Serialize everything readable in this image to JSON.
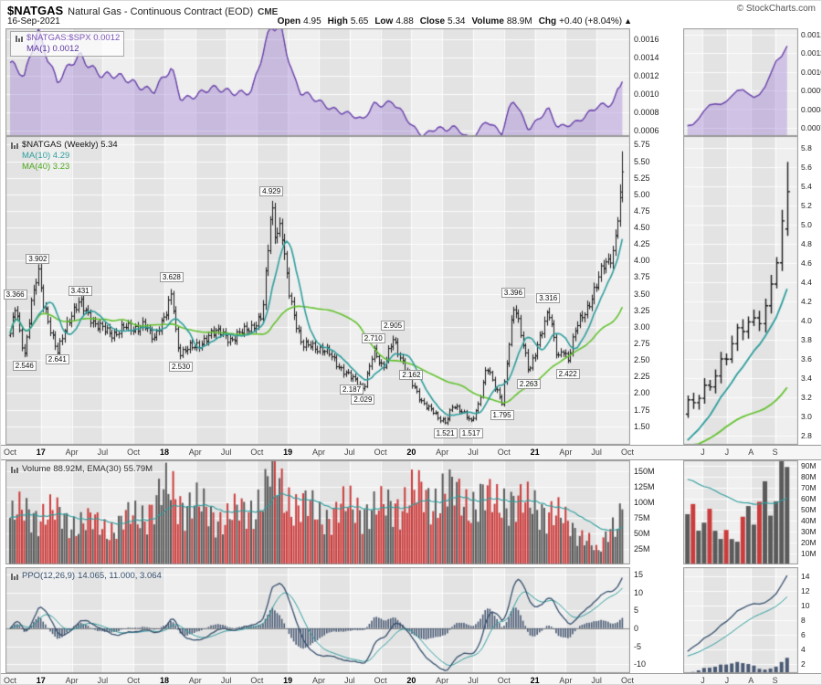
{
  "header": {
    "symbol": "$NATGAS",
    "description": "Natural Gas - Continuous Contract (EOD)",
    "exchange": "CME",
    "copyright": "© StockCharts.com",
    "date": "16-Sep-2021",
    "quote": [
      {
        "label": "Open",
        "value": "4.95"
      },
      {
        "label": "High",
        "value": "5.65"
      },
      {
        "label": "Low",
        "value": "4.88"
      },
      {
        "label": "Close",
        "value": "5.34"
      },
      {
        "label": "Volume",
        "value": "88.9M"
      },
      {
        "label": "Chg",
        "value": "+0.40 (+8.04%)"
      }
    ],
    "chg_arrow": "▲"
  },
  "colors": {
    "ratio_line": "#7d55b8",
    "ratio_ma": "#5a35a0",
    "ratio_fill": "rgba(155,120,210,0.38)",
    "price_bar": "#1a1a1a",
    "ma10": "#2f9e9e",
    "ma40": "#63c22e",
    "vol_up": "#5a5a5a",
    "vol_down": "#cc3b3b",
    "vol_ema": "#2f9e9e",
    "ppo_line": "#36506e",
    "ppo_signal": "#2f9e9e",
    "ppo_hist": "#4a5a74",
    "band_dark": "#e3e3e3",
    "band_light": "#efefef",
    "grid": "rgba(255,255,255,0.85)",
    "frame": "#999999"
  },
  "x_axis": {
    "main": {
      "labels": [
        "Oct",
        "17",
        "Apr",
        "Jul",
        "Oct",
        "18",
        "Apr",
        "Jul",
        "Oct",
        "19",
        "Apr",
        "Jul",
        "Oct",
        "20",
        "Apr",
        "Jul",
        "Oct",
        "21",
        "Apr",
        "Jul",
        "Oct"
      ],
      "months": [
        0,
        3,
        6,
        9,
        12,
        15,
        18,
        21,
        24,
        27,
        30,
        33,
        36,
        39,
        42,
        45,
        48,
        51,
        54,
        57,
        60
      ]
    },
    "thumb": {
      "labels": [
        "J",
        "J",
        "A",
        "S"
      ],
      "months": [
        56,
        57,
        58,
        59
      ]
    }
  },
  "chart_data": [
    {
      "id": "ratio",
      "type": "area",
      "title": "$NATGAS:$SPX",
      "legend": [
        {
          "text": "$NATGAS:$SPX 0.0012"
        },
        {
          "text": "MA(1) 0.0012"
        }
      ],
      "y_ticks": {
        "values": [
          0.0016,
          0.0014,
          0.0012,
          0.001,
          0.0008,
          0.0006
        ],
        "labels": [
          "0.0016",
          "0.0014",
          "0.0012",
          "0.0010",
          "0.0008",
          "0.0006"
        ]
      },
      "y_range": [
        0.000545,
        0.00172
      ],
      "thumb_y_ticks": {
        "values": [
          0.0012,
          0.0011,
          0.001,
          0.0009,
          0.0008,
          0.0007
        ],
        "labels": [
          "0.0012",
          "0.0011",
          "0.0010",
          "0.0009",
          "0.0008",
          "0.0007"
        ]
      },
      "thumb_y_range": [
        0.000655,
        0.001235
      ],
      "waypoints": {
        "months": [
          0,
          1.4,
          2.7,
          4.6,
          6.8,
          9,
          12,
          14,
          15.7,
          16.6,
          19.5,
          23.5,
          25.4,
          26.3,
          27.6,
          28.3,
          30,
          32,
          34.3,
          35.3,
          37.2,
          39,
          40,
          41.6,
          42.3,
          43,
          44.8,
          46.3,
          47.8,
          48.6,
          49,
          50.4,
          52.3,
          53.2,
          55,
          56,
          57,
          58.2,
          58.7,
          59,
          59.3,
          59.5
        ],
        "values": [
          0.00135,
          0.00117,
          0.00172,
          0.00114,
          0.00142,
          0.00122,
          0.00114,
          0.00104,
          0.00127,
          0.00096,
          0.00105,
          0.00103,
          0.00174,
          0.00177,
          0.00118,
          0.00101,
          0.00092,
          0.00083,
          0.00071,
          0.0009,
          0.00092,
          0.00066,
          0.00056,
          0.00065,
          0.0006,
          0.00064,
          0.00052,
          0.00072,
          0.00056,
          0.00087,
          0.00095,
          0.00063,
          0.00083,
          0.00064,
          0.00071,
          0.00077,
          0.00085,
          0.00089,
          0.00093,
          0.00105,
          0.00113,
          0.0012
        ]
      }
    },
    {
      "id": "price",
      "type": "ohlc",
      "title": "$NATGAS (Weekly)",
      "legend": {
        "main": "$NATGAS (Weekly) 5.34",
        "ma10": "MA(10) 4.29",
        "ma40": "MA(40) 3.23"
      },
      "last_bar": {
        "open": 4.95,
        "high": 5.65,
        "low": 4.88,
        "close": 5.34
      },
      "y_ticks": {
        "values": [
          5.75,
          5.5,
          5.25,
          5.0,
          4.75,
          4.5,
          4.25,
          4.0,
          3.75,
          3.5,
          3.25,
          3.0,
          2.75,
          2.5,
          2.25,
          2.0,
          1.75,
          1.5
        ],
        "labels": [
          "5.75",
          "5.50",
          "5.25",
          "5.00",
          "4.75",
          "4.50",
          "4.25",
          "4.00",
          "3.75",
          "3.50",
          "3.25",
          "3.00",
          "2.75",
          "2.50",
          "2.25",
          "2.00",
          "1.75",
          "1.50"
        ]
      },
      "y_range": [
        1.22,
        5.88
      ],
      "thumb_y_ticks": {
        "values": [
          5.8,
          5.6,
          5.4,
          5.2,
          5.0,
          4.8,
          4.6,
          4.4,
          4.2,
          4.0,
          3.8,
          3.6,
          3.4,
          3.2,
          3.0,
          2.8
        ],
        "labels": [
          "5.8",
          "5.6",
          "5.4",
          "5.2",
          "5.0",
          "4.8",
          "4.6",
          "4.4",
          "4.2",
          "4.0",
          "3.8",
          "3.6",
          "3.4",
          "3.2",
          "3.0",
          "2.8"
        ]
      },
      "thumb_y_range": [
        2.7,
        5.92
      ],
      "waypoints": {
        "months": [
          0,
          0.5,
          1.0,
          1.4,
          2.0,
          2.7,
          3.2,
          4.0,
          4.6,
          5.2,
          6.0,
          6.8,
          7.5,
          8.2,
          9.0,
          10,
          11,
          12,
          13,
          14,
          15,
          15.7,
          16.2,
          16.6,
          17.5,
          18.5,
          19.5,
          20.5,
          21.5,
          22.5,
          23.5,
          24.5,
          25.4,
          25.8,
          26.3,
          27.0,
          27.6,
          28.3,
          29.2,
          30,
          31,
          32,
          33.2,
          34.3,
          35.3,
          36.2,
          37.2,
          38.2,
          39,
          40,
          41,
          41.6,
          42.3,
          43,
          43.8,
          44.8,
          45.5,
          46.3,
          47,
          47.8,
          48.6,
          49,
          49.6,
          50.4,
          51.2,
          52.3,
          53.2,
          53.7,
          54.2,
          55,
          56,
          57,
          57.6,
          58.2,
          58.7,
          59,
          59.3,
          59.5
        ],
        "closes": [
          2.9,
          3.3,
          2.8,
          2.57,
          3.35,
          3.88,
          3.32,
          2.88,
          2.66,
          2.95,
          3.14,
          3.4,
          3.24,
          3.02,
          2.96,
          2.89,
          3.01,
          2.92,
          3.09,
          2.79,
          3.15,
          3.58,
          2.74,
          2.56,
          2.7,
          2.76,
          2.87,
          2.94,
          2.8,
          2.91,
          3.0,
          3.2,
          4.8,
          4.32,
          4.6,
          3.64,
          3.1,
          2.72,
          2.77,
          2.64,
          2.6,
          2.4,
          2.22,
          2.06,
          2.66,
          2.33,
          2.86,
          2.42,
          2.14,
          1.88,
          1.74,
          1.6,
          1.56,
          1.84,
          1.72,
          1.56,
          1.84,
          2.42,
          2.1,
          1.86,
          2.98,
          3.35,
          2.88,
          2.32,
          2.74,
          3.22,
          2.52,
          2.7,
          2.5,
          2.98,
          3.26,
          3.68,
          3.9,
          3.94,
          4.18,
          4.68,
          5.08,
          5.34
        ]
      },
      "annotations": [
        {
          "text": "3.366",
          "month": 0.5,
          "price": 3.366,
          "pos": "above"
        },
        {
          "text": "3.902",
          "month": 2.7,
          "price": 3.902,
          "pos": "above"
        },
        {
          "text": "2.546",
          "month": 1.4,
          "price": 2.546,
          "pos": "below"
        },
        {
          "text": "2.641",
          "month": 4.6,
          "price": 2.641,
          "pos": "below"
        },
        {
          "text": "3.431",
          "month": 6.8,
          "price": 3.431,
          "pos": "above"
        },
        {
          "text": "3.628",
          "month": 15.7,
          "price": 3.628,
          "pos": "above"
        },
        {
          "text": "2.530",
          "month": 16.6,
          "price": 2.53,
          "pos": "below"
        },
        {
          "text": "4.929",
          "month": 25.4,
          "price": 4.929,
          "pos": "above"
        },
        {
          "text": "2.710",
          "month": 35.3,
          "price": 2.71,
          "pos": "above"
        },
        {
          "text": "2.905",
          "month": 37.2,
          "price": 2.905,
          "pos": "above"
        },
        {
          "text": "2.187",
          "month": 33.2,
          "price": 2.187,
          "pos": "below"
        },
        {
          "text": "2.029",
          "month": 34.3,
          "price": 2.029,
          "pos": "below"
        },
        {
          "text": "2.162",
          "month": 39,
          "price": 2.162,
          "pos": "above"
        },
        {
          "text": "1.521",
          "month": 42.3,
          "price": 1.521,
          "pos": "below"
        },
        {
          "text": "1.517",
          "month": 44.8,
          "price": 1.517,
          "pos": "below"
        },
        {
          "text": "1.795",
          "month": 47.8,
          "price": 1.795,
          "pos": "below"
        },
        {
          "text": "3.396",
          "month": 48.9,
          "price": 3.396,
          "pos": "above"
        },
        {
          "text": "2.263",
          "month": 50.4,
          "price": 2.263,
          "pos": "below"
        },
        {
          "text": "3.316",
          "month": 52.3,
          "price": 3.316,
          "pos": "above"
        },
        {
          "text": "2.422",
          "month": 54.2,
          "price": 2.422,
          "pos": "below"
        }
      ]
    },
    {
      "id": "volume",
      "type": "bar",
      "legend": "Volume 88.92M, EMA(30) 55.79M",
      "last_volume_m": 88.92,
      "ema30_m": 55.79,
      "y_ticks": {
        "values": [
          150,
          125,
          100,
          75,
          50,
          25
        ],
        "labels": [
          "150M",
          "125M",
          "100M",
          "75M",
          "50M",
          "25M"
        ]
      },
      "y_range": [
        0,
        168
      ],
      "thumb_y_ticks": {
        "values": [
          90,
          80,
          70,
          60,
          50,
          40,
          30,
          20,
          10
        ],
        "labels": [
          "90M",
          "80M",
          "70M",
          "60M",
          "50M",
          "40M",
          "30M",
          "20M",
          "10M"
        ]
      },
      "thumb_y_range": [
        0,
        95
      ],
      "waypoints": {
        "months": [
          0,
          2,
          4,
          6,
          8,
          10,
          12,
          14,
          15.7,
          17,
          19,
          21,
          23,
          25,
          25.5,
          26,
          27,
          28,
          30,
          32,
          34,
          36,
          37.5,
          39,
          41,
          42,
          44,
          46,
          47,
          48.5,
          50,
          52,
          53,
          54,
          55,
          56,
          56.8,
          57.3,
          58,
          58.6,
          59.2,
          59.5
        ],
        "values": [
          75,
          85,
          80,
          70,
          65,
          60,
          75,
          95,
          120,
          100,
          85,
          75,
          85,
          120,
          165,
          130,
          112,
          95,
          80,
          85,
          95,
          85,
          100,
          110,
          105,
          120,
          100,
          110,
          90,
          115,
          90,
          95,
          80,
          65,
          55,
          48,
          24,
          18,
          48,
          68,
          85,
          89
        ]
      }
    },
    {
      "id": "ppo",
      "type": "line+histogram",
      "legend": {
        "name": "PPO(12,26,9)",
        "values": "14.065, 11.000, 3.064"
      },
      "last": {
        "ppo": 14.065,
        "signal": 11.0,
        "hist": 3.064
      },
      "y_ticks": {
        "values": [
          15,
          10,
          5,
          0,
          -5,
          -10
        ],
        "labels": [
          "15",
          "10",
          "5",
          "0",
          "-5",
          "-10"
        ]
      },
      "y_range": [
        -12.5,
        17
      ],
      "thumb_y_ticks": {
        "values": [
          14,
          12,
          10,
          8,
          6,
          4,
          2
        ],
        "labels": [
          "14",
          "12",
          "10",
          "8",
          "6",
          "4",
          "2"
        ]
      },
      "thumb_y_range": [
        0.8,
        15.2
      ]
    }
  ]
}
